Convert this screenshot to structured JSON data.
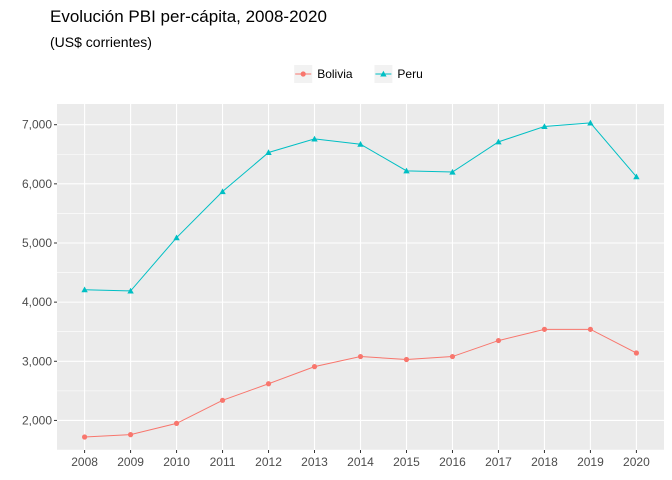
{
  "chart_data": {
    "type": "line",
    "title": "Evolución PBI per-cápita, 2008-2020",
    "subtitle": "(US$ corrientes)",
    "xlabel": "",
    "ylabel": "",
    "x": [
      2008,
      2009,
      2010,
      2011,
      2012,
      2013,
      2014,
      2015,
      2016,
      2017,
      2018,
      2019,
      2020
    ],
    "x_tick_labels": [
      "2008",
      "2009",
      "2010",
      "2011",
      "2012",
      "2013",
      "2014",
      "2015",
      "2016",
      "2017",
      "2018",
      "2019",
      "2020"
    ],
    "y_ticks": [
      2000,
      3000,
      4000,
      5000,
      6000,
      7000
    ],
    "y_tick_labels": [
      "2,000",
      "3,000",
      "4,000",
      "5,000",
      "6,000",
      "7,000"
    ],
    "xlim": [
      2007.4,
      2020.6
    ],
    "ylim": [
      1500,
      7350
    ],
    "grid": true,
    "legend_position": "top",
    "series": [
      {
        "name": "Bolivia",
        "color": "#F8766D",
        "marker": "circle",
        "values": [
          1720,
          1760,
          1950,
          2340,
          2620,
          2910,
          3080,
          3030,
          3080,
          3350,
          3540,
          3540,
          3140
        ]
      },
      {
        "name": "Peru",
        "color": "#00BFC4",
        "marker": "triangle",
        "values": [
          4210,
          4190,
          5090,
          5870,
          6530,
          6760,
          6670,
          6220,
          6200,
          6710,
          6970,
          7030,
          6120
        ]
      }
    ]
  }
}
